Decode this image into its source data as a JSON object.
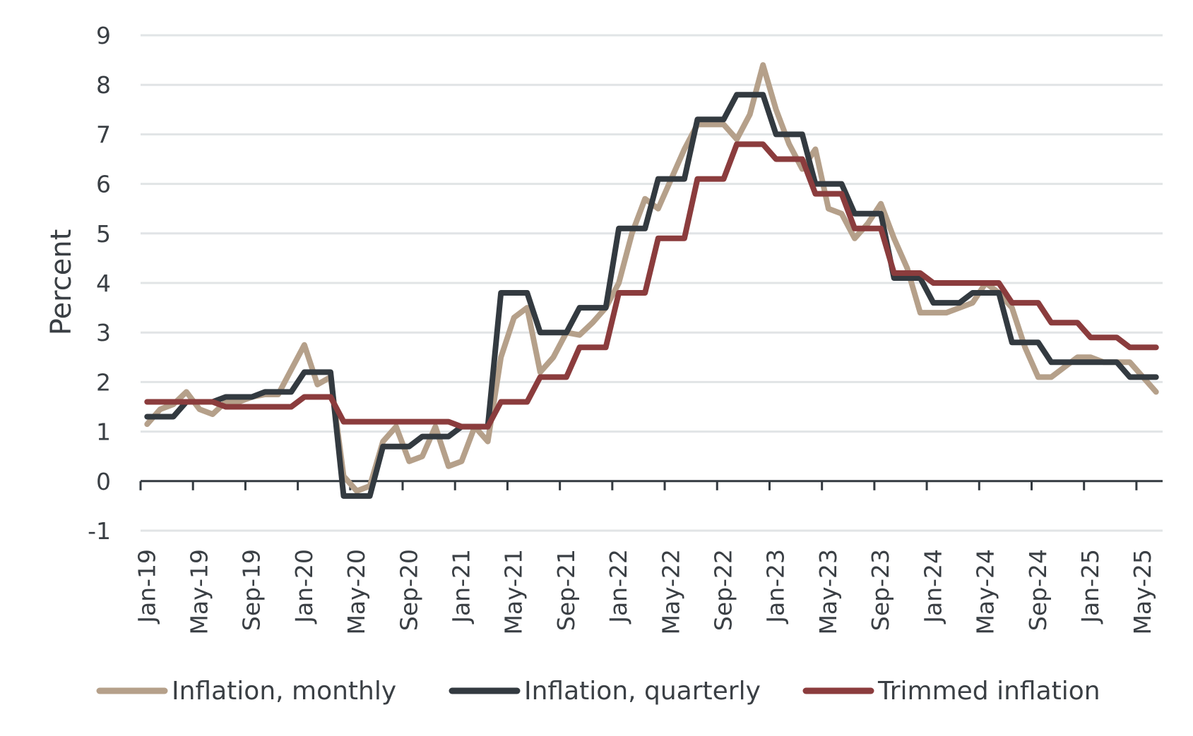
{
  "chart_data": {
    "type": "line",
    "title": "",
    "xlabel": "",
    "ylabel": "Percent",
    "ylim": [
      -1,
      9
    ],
    "yticks": [
      -1,
      0,
      1,
      2,
      3,
      4,
      5,
      6,
      7,
      8,
      9
    ],
    "grid": true,
    "legend_position": "bottom",
    "x": [
      "Jan-19",
      "Feb-19",
      "Mar-19",
      "Apr-19",
      "May-19",
      "Jun-19",
      "Jul-19",
      "Aug-19",
      "Sep-19",
      "Oct-19",
      "Nov-19",
      "Dec-19",
      "Jan-20",
      "Feb-20",
      "Mar-20",
      "Apr-20",
      "May-20",
      "Jun-20",
      "Jul-20",
      "Aug-20",
      "Sep-20",
      "Oct-20",
      "Nov-20",
      "Dec-20",
      "Jan-21",
      "Feb-21",
      "Mar-21",
      "Apr-21",
      "May-21",
      "Jun-21",
      "Jul-21",
      "Aug-21",
      "Sep-21",
      "Oct-21",
      "Nov-21",
      "Dec-21",
      "Jan-22",
      "Feb-22",
      "Mar-22",
      "Apr-22",
      "May-22",
      "Jun-22",
      "Jul-22",
      "Aug-22",
      "Sep-22",
      "Oct-22",
      "Nov-22",
      "Dec-22",
      "Jan-23",
      "Feb-23",
      "Mar-23",
      "Apr-23",
      "May-23",
      "Jun-23",
      "Jul-23",
      "Aug-23",
      "Sep-23",
      "Oct-23",
      "Nov-23",
      "Dec-23",
      "Jan-24",
      "Feb-24",
      "Mar-24",
      "Apr-24",
      "May-24",
      "Jun-24",
      "Jul-24",
      "Aug-24",
      "Sep-24",
      "Oct-24",
      "Nov-24",
      "Dec-24",
      "Jan-25",
      "Feb-25",
      "Mar-25",
      "Apr-25",
      "May-25",
      "Jun-25"
    ],
    "xtick_labels": [
      "Jan-19",
      "May-19",
      "Sep-19",
      "Jan-20",
      "May-20",
      "Sep-20",
      "Jan-21",
      "May-21",
      "Sep-21",
      "Jan-22",
      "May-22",
      "Sep-22",
      "Jan-23",
      "May-23",
      "Sep-23",
      "Jan-24",
      "May-24",
      "Sep-24",
      "Jan-25",
      "May-25"
    ],
    "series": [
      {
        "name": "Inflation, monthly",
        "color": "#b5a08a",
        "values": [
          1.15,
          1.45,
          1.55,
          1.8,
          1.45,
          1.35,
          1.6,
          1.6,
          1.7,
          1.75,
          1.75,
          2.25,
          2.75,
          1.95,
          2.1,
          0.1,
          -0.2,
          -0.1,
          0.8,
          1.1,
          0.4,
          0.5,
          1.1,
          0.3,
          0.4,
          1.1,
          0.8,
          2.5,
          3.3,
          3.5,
          2.2,
          2.5,
          3.0,
          2.95,
          3.2,
          3.5,
          4.0,
          5.0,
          5.7,
          5.5,
          6.1,
          6.7,
          7.2,
          7.2,
          7.2,
          6.9,
          7.4,
          8.4,
          7.5,
          6.8,
          6.3,
          6.7,
          5.5,
          5.4,
          4.9,
          5.2,
          5.6,
          4.9,
          4.3,
          3.4,
          3.4,
          3.4,
          3.5,
          3.6,
          4.0,
          3.8,
          3.5,
          2.7,
          2.1,
          2.1,
          2.3,
          2.5,
          2.5,
          2.4,
          2.4,
          2.4,
          2.1,
          1.8
        ]
      },
      {
        "name": "Inflation, quarterly",
        "color": "#333a40",
        "values": [
          1.3,
          1.3,
          1.3,
          1.6,
          1.6,
          1.6,
          1.7,
          1.7,
          1.7,
          1.8,
          1.8,
          1.8,
          2.2,
          2.2,
          2.2,
          -0.3,
          -0.3,
          -0.3,
          0.7,
          0.7,
          0.7,
          0.9,
          0.9,
          0.9,
          1.1,
          1.1,
          1.1,
          3.8,
          3.8,
          3.8,
          3.0,
          3.0,
          3.0,
          3.5,
          3.5,
          3.5,
          5.1,
          5.1,
          5.1,
          6.1,
          6.1,
          6.1,
          7.3,
          7.3,
          7.3,
          7.8,
          7.8,
          7.8,
          7.0,
          7.0,
          7.0,
          6.0,
          6.0,
          6.0,
          5.4,
          5.4,
          5.4,
          4.1,
          4.1,
          4.1,
          3.6,
          3.6,
          3.6,
          3.8,
          3.8,
          3.8,
          2.8,
          2.8,
          2.8,
          2.4,
          2.4,
          2.4,
          2.4,
          2.4,
          2.4,
          2.1,
          2.1,
          2.1
        ]
      },
      {
        "name": "Trimmed inflation",
        "color": "#8b3c3d",
        "values": [
          1.6,
          1.6,
          1.6,
          1.6,
          1.6,
          1.6,
          1.5,
          1.5,
          1.5,
          1.5,
          1.5,
          1.5,
          1.7,
          1.7,
          1.7,
          1.2,
          1.2,
          1.2,
          1.2,
          1.2,
          1.2,
          1.2,
          1.2,
          1.2,
          1.1,
          1.1,
          1.1,
          1.6,
          1.6,
          1.6,
          2.1,
          2.1,
          2.1,
          2.7,
          2.7,
          2.7,
          3.8,
          3.8,
          3.8,
          4.9,
          4.9,
          4.9,
          6.1,
          6.1,
          6.1,
          6.8,
          6.8,
          6.8,
          6.5,
          6.5,
          6.5,
          5.8,
          5.8,
          5.8,
          5.1,
          5.1,
          5.1,
          4.2,
          4.2,
          4.2,
          4.0,
          4.0,
          4.0,
          4.0,
          4.0,
          4.0,
          3.6,
          3.6,
          3.6,
          3.2,
          3.2,
          3.2,
          2.9,
          2.9,
          2.9,
          2.7,
          2.7,
          2.7
        ]
      }
    ]
  },
  "colors": {
    "grid": "#e1e4e6",
    "axis": "#333a40"
  }
}
